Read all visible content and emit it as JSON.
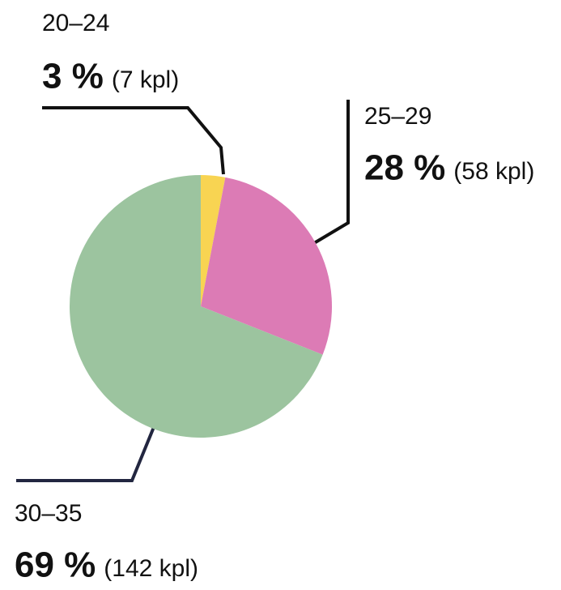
{
  "chart_data": {
    "type": "pie",
    "categories": [
      "20–24",
      "25–29",
      "30–35"
    ],
    "values": [
      3,
      28,
      69
    ],
    "value_labels": [
      "3 %",
      "28 %",
      "69 %"
    ],
    "counts": [
      7,
      58,
      142
    ],
    "count_labels": [
      "(7 kpl)",
      "(58 kpl)",
      "(142 kpl)"
    ],
    "colors": [
      "#f8d452",
      "#dc7bb5",
      "#9cc49f"
    ]
  }
}
